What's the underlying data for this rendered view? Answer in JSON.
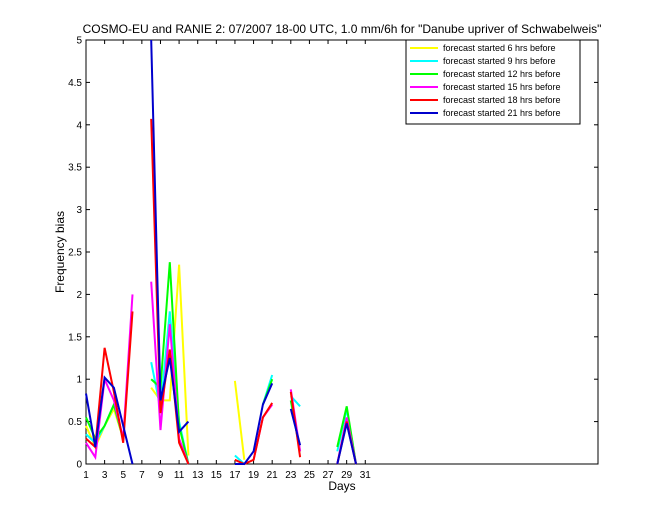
{
  "chart_data": {
    "type": "line",
    "title": "COSMO-EU and RANIE 2: 07/2007 18-00 UTC, 1.0 mm/6h for \"Danube upriver of Schwabelweis\"",
    "xlabel": "Days",
    "ylabel": "Frequency bias",
    "xlim": [
      1,
      56
    ],
    "ylim": [
      0,
      5
    ],
    "xticks": [
      1,
      3,
      5,
      7,
      9,
      11,
      13,
      15,
      17,
      19,
      21,
      23,
      25,
      27,
      29,
      31
    ],
    "yticks": [
      0,
      0.5,
      1,
      1.5,
      2,
      2.5,
      3,
      3.5,
      4,
      4.5,
      5
    ],
    "legend_position": "top-right",
    "series": [
      {
        "name": "forecast started 6 hrs before",
        "color": "#ffff00",
        "segments": [
          [
            [
              1,
              0.45
            ],
            [
              2,
              0.2
            ],
            [
              3,
              0.45
            ],
            [
              4,
              0.65
            ],
            [
              5,
              0.3
            ]
          ],
          [
            [
              8,
              0.9
            ],
            [
              9,
              0.75
            ],
            [
              10,
              0.75
            ],
            [
              11,
              2.35
            ],
            [
              12,
              0.1
            ]
          ],
          [
            [
              17,
              0.98
            ],
            [
              18,
              0.05
            ]
          ],
          [
            [
              29,
              0.6
            ]
          ]
        ]
      },
      {
        "name": "forecast started 9 hrs before",
        "color": "#00ffff",
        "segments": [
          [
            [
              1,
              0.35
            ],
            [
              2,
              0.25
            ],
            [
              3,
              0.45
            ],
            [
              4,
              0.7
            ],
            [
              5,
              0.3
            ]
          ],
          [
            [
              8,
              1.2
            ],
            [
              9,
              0.65
            ],
            [
              10,
              1.8
            ],
            [
              11,
              0.5
            ],
            [
              12,
              0.0
            ]
          ],
          [
            [
              17,
              0.1
            ],
            [
              18,
              0.0
            ]
          ],
          [
            [
              20,
              0.7
            ],
            [
              21,
              1.05
            ]
          ],
          [
            [
              23,
              0.8
            ],
            [
              24,
              0.68
            ]
          ],
          [
            [
              28,
              0.15
            ],
            [
              29,
              0.65
            ],
            [
              30,
              0.0
            ]
          ]
        ]
      },
      {
        "name": "forecast started 12 hrs before",
        "color": "#00ff00",
        "segments": [
          [
            [
              1,
              0.55
            ],
            [
              2,
              0.3
            ],
            [
              3,
              0.45
            ],
            [
              4,
              0.7
            ],
            [
              5,
              0.3
            ]
          ],
          [
            [
              8,
              1.0
            ],
            [
              9,
              0.9
            ],
            [
              10,
              2.38
            ],
            [
              11,
              0.45
            ],
            [
              12,
              0.0
            ]
          ],
          [
            [
              20,
              0.7
            ],
            [
              21,
              1.0
            ]
          ],
          [
            [
              23,
              0.75
            ],
            [
              24,
              0.15
            ]
          ],
          [
            [
              28,
              0.2
            ],
            [
              29,
              0.68
            ],
            [
              30,
              0.0
            ]
          ]
        ]
      },
      {
        "name": "forecast started 15 hrs before",
        "color": "#ff00ff",
        "segments": [
          [
            [
              1,
              0.25
            ],
            [
              2,
              0.08
            ],
            [
              3,
              1.0
            ],
            [
              4,
              0.75
            ],
            [
              5,
              0.3
            ],
            [
              6,
              2.0
            ]
          ],
          [
            [
              8,
              2.15
            ],
            [
              9,
              0.4
            ],
            [
              10,
              1.65
            ],
            [
              11,
              0.3
            ],
            [
              12,
              0.0
            ]
          ],
          [
            [
              19,
              0.05
            ],
            [
              20,
              0.55
            ],
            [
              21,
              0.7
            ]
          ],
          [
            [
              23,
              0.88
            ],
            [
              24,
              0.15
            ]
          ],
          [
            [
              28,
              0.0
            ],
            [
              29,
              0.55
            ],
            [
              30,
              0.0
            ]
          ]
        ]
      },
      {
        "name": "forecast started 18 hrs before",
        "color": "#ff0000",
        "segments": [
          [
            [
              1,
              0.3
            ],
            [
              2,
              0.2
            ],
            [
              3,
              1.37
            ],
            [
              4,
              0.85
            ],
            [
              5,
              0.25
            ],
            [
              6,
              1.8
            ]
          ],
          [
            [
              8,
              4.07
            ],
            [
              9,
              0.6
            ],
            [
              10,
              1.35
            ],
            [
              11,
              0.25
            ],
            [
              12,
              0.0
            ]
          ],
          [
            [
              17,
              0.05
            ],
            [
              18,
              0.0
            ],
            [
              19,
              0.05
            ],
            [
              20,
              0.55
            ],
            [
              21,
              0.72
            ]
          ],
          [
            [
              23,
              0.85
            ],
            [
              24,
              0.08
            ]
          ],
          [
            [
              28,
              0.0
            ],
            [
              29,
              0.5
            ],
            [
              30,
              0.0
            ]
          ]
        ]
      },
      {
        "name": "forecast started 21 hrs before",
        "color": "#0000cc",
        "segments": [
          [
            [
              1,
              0.83
            ],
            [
              2,
              0.2
            ],
            [
              3,
              1.02
            ],
            [
              4,
              0.9
            ],
            [
              5,
              0.45
            ],
            [
              6,
              0.0
            ]
          ],
          [
            [
              8,
              5.0
            ],
            [
              9,
              0.75
            ],
            [
              10,
              1.25
            ],
            [
              11,
              0.38
            ],
            [
              12,
              0.5
            ]
          ],
          [
            [
              17,
              0.0
            ],
            [
              18,
              0.0
            ],
            [
              19,
              0.15
            ],
            [
              20,
              0.7
            ],
            [
              21,
              0.95
            ]
          ],
          [
            [
              23,
              0.65
            ],
            [
              24,
              0.22
            ]
          ],
          [
            [
              28,
              0.0
            ],
            [
              29,
              0.48
            ],
            [
              30,
              0.0
            ]
          ]
        ]
      }
    ]
  }
}
